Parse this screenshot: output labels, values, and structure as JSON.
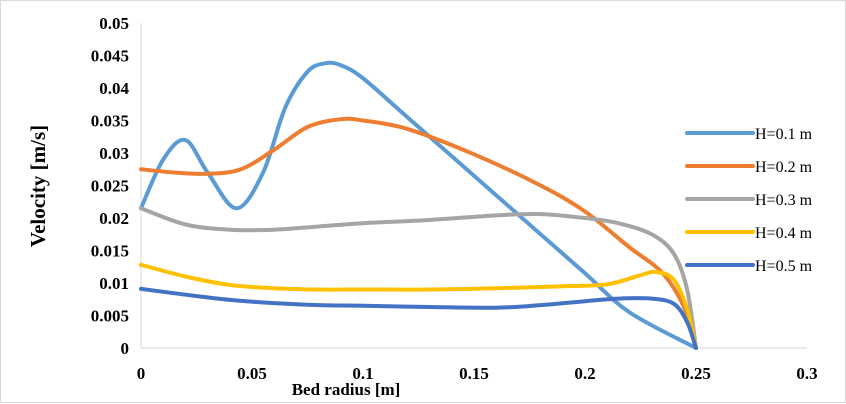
{
  "chart_data": {
    "type": "line",
    "title": "",
    "xlabel": "Bed radius [m]",
    "ylabel": "Velocity [m/s]",
    "xlim": [
      0,
      0.3
    ],
    "ylim": [
      0,
      0.05
    ],
    "x_ticks": [
      0,
      0.05,
      0.1,
      0.15,
      0.2,
      0.25,
      0.3
    ],
    "x_tick_labels": [
      "0",
      "0.05",
      "0.1",
      "0.15",
      "0.2",
      "0.25",
      "0.3"
    ],
    "y_ticks": [
      0,
      0.005,
      0.01,
      0.015,
      0.02,
      0.025,
      0.03,
      0.035,
      0.04,
      0.045,
      0.05
    ],
    "y_tick_labels": [
      "0",
      "0.005",
      "0.01",
      "0.015",
      "0.02",
      "0.025",
      "0.03",
      "0.035",
      "0.04",
      "0.045",
      "0.05"
    ],
    "grid": false,
    "legend_position": "right",
    "series": [
      {
        "name": "H=0.1 m",
        "color": "#5b9bd5",
        "x": [
          0,
          0.01,
          0.02,
          0.03,
          0.043,
          0.055,
          0.065,
          0.075,
          0.083,
          0.09,
          0.1,
          0.12,
          0.15,
          0.18,
          0.2,
          0.22,
          0.25
        ],
        "y": [
          0.0215,
          0.029,
          0.032,
          0.027,
          0.0215,
          0.027,
          0.037,
          0.0425,
          0.0438,
          0.0435,
          0.0415,
          0.0355,
          0.0265,
          0.0175,
          0.0115,
          0.0055,
          0
        ]
      },
      {
        "name": "H=0.2 m",
        "color": "#ed7d31",
        "x": [
          0,
          0.015,
          0.03,
          0.045,
          0.06,
          0.075,
          0.09,
          0.1,
          0.12,
          0.15,
          0.18,
          0.2,
          0.22,
          0.235,
          0.245,
          0.25
        ],
        "y": [
          0.0275,
          0.027,
          0.0268,
          0.0275,
          0.0305,
          0.034,
          0.0352,
          0.035,
          0.0337,
          0.0298,
          0.025,
          0.021,
          0.0155,
          0.0115,
          0.006,
          0
        ]
      },
      {
        "name": "H=0.3 m",
        "color": "#a5a5a5",
        "x": [
          0,
          0.02,
          0.04,
          0.06,
          0.08,
          0.1,
          0.13,
          0.16,
          0.18,
          0.2,
          0.215,
          0.23,
          0.24,
          0.246,
          0.25
        ],
        "y": [
          0.0215,
          0.019,
          0.0182,
          0.0182,
          0.0187,
          0.0192,
          0.0197,
          0.0204,
          0.0206,
          0.02,
          0.0192,
          0.0175,
          0.0145,
          0.009,
          0
        ]
      },
      {
        "name": "H=0.4 m",
        "color": "#ffc000",
        "x": [
          0,
          0.02,
          0.04,
          0.06,
          0.08,
          0.1,
          0.13,
          0.16,
          0.19,
          0.21,
          0.225,
          0.232,
          0.24,
          0.246,
          0.25
        ],
        "y": [
          0.0128,
          0.011,
          0.0097,
          0.0092,
          0.009,
          0.009,
          0.009,
          0.0092,
          0.0095,
          0.0098,
          0.0112,
          0.0117,
          0.0105,
          0.006,
          0
        ]
      },
      {
        "name": "H=0.5 m",
        "color": "#4472c4",
        "x": [
          0,
          0.02,
          0.04,
          0.06,
          0.08,
          0.1,
          0.13,
          0.16,
          0.18,
          0.2,
          0.215,
          0.23,
          0.24,
          0.246,
          0.25
        ],
        "y": [
          0.0091,
          0.0082,
          0.0074,
          0.0069,
          0.0066,
          0.0065,
          0.0063,
          0.0062,
          0.0066,
          0.0072,
          0.0076,
          0.0076,
          0.0068,
          0.004,
          0
        ]
      }
    ]
  }
}
